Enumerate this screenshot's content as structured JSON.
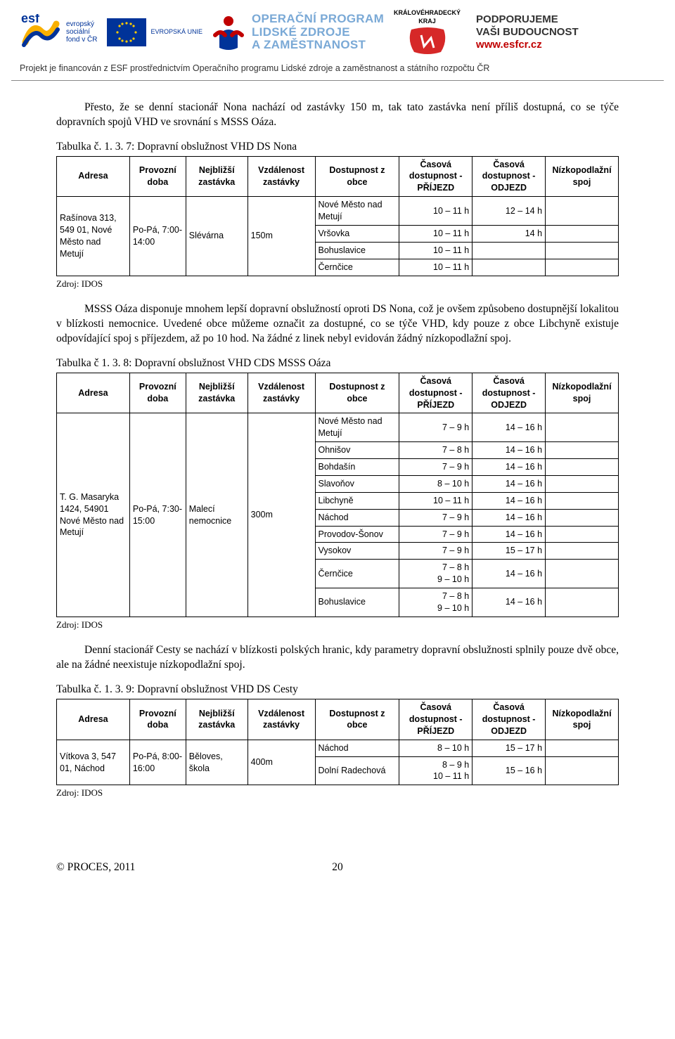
{
  "header": {
    "esf_lines": [
      "evropský",
      "sociální",
      "fond v ČR"
    ],
    "eu_label": "EVROPSKÁ UNIE",
    "op_line1": "OPERAČNÍ PROGRAM",
    "op_line2": "LIDSKÉ ZDROJE",
    "op_line3": "A ZAMĚSTNANOST",
    "kraj_line1": "KRÁLOVÉHRADECKÝ",
    "kraj_line2": "KRAJ",
    "support_line1": "PODPORUJEME",
    "support_line2": "VAŠI BUDOUCNOST",
    "support_url": "www.esfcr.cz",
    "funding_line": "Projekt je financován z ESF prostřednictvím Operačního programu Lidské zdroje a zaměstnanost a státního rozpočtu ČR"
  },
  "para1": "Přesto, že se denní stacionář Nona nachází od zastávky 150 m, tak tato zastávka není příliš dostupná, co se týče dopravních spojů VHD ve srovnání s MSSS Oáza.",
  "caption1": "Tabulka č. 1. 3. 7: Dopravní obslužnost VHD DS Nona",
  "columns": [
    "Adresa",
    "Provozní doba",
    "Nejbližší zastávka",
    "Vzdálenost zastávky",
    "Dostupnost z obce",
    "Časová dostupnost - PŘÍJEZD",
    "Časová dostupnost - ODJEZD",
    "Nízkopodlažní spoj"
  ],
  "t1": {
    "adresa": "Rašínova 313, 549 01, Nové Město nad Metují",
    "doba": "Po-Pá, 7:00-14:00",
    "zastavka": "Slévárna",
    "vzdalenost": "150m",
    "rows": [
      {
        "obec": "Nové Město nad Metují",
        "prijezd": "10 – 11 h",
        "odjezd": "12 – 14 h",
        "spoj": ""
      },
      {
        "obec": "Vršovka",
        "prijezd": "10 – 11 h",
        "odjezd": "14 h",
        "spoj": ""
      },
      {
        "obec": "Bohuslavice",
        "prijezd": "10 – 11 h",
        "odjezd": "",
        "spoj": ""
      },
      {
        "obec": "Černčice",
        "prijezd": "10 – 11 h",
        "odjezd": "",
        "spoj": ""
      }
    ]
  },
  "source": "Zdroj: IDOS",
  "para2": "MSSS Oáza disponuje mnohem lepší dopravní obslužností oproti DS Nona, což je ovšem způsobeno dostupnější lokalitou v blízkosti nemocnice. Uvedené obce můžeme označit za dostupné, co se týče VHD, kdy pouze z obce Libchyně existuje odpovídající spoj s příjezdem, až po 10 hod. Na žádné z linek nebyl evidován žádný nízkopodlažní spoj.",
  "caption2": "Tabulka č 1. 3. 8: Dopravní obslužnost VHD CDS MSSS Oáza",
  "t2": {
    "adresa": "T. G. Masaryka 1424, 54901 Nové Město nad Metují",
    "doba": "Po-Pá, 7:30-15:00",
    "zastavka": "Malecí nemocnice",
    "vzdalenost": "300m",
    "rows": [
      {
        "obec": "Nové Město nad Metují",
        "prijezd": "7 – 9 h",
        "odjezd": "14 – 16 h",
        "spoj": ""
      },
      {
        "obec": "Ohnišov",
        "prijezd": "7 – 8 h",
        "odjezd": "14 – 16 h",
        "spoj": ""
      },
      {
        "obec": "Bohdašín",
        "prijezd": "7 – 9 h",
        "odjezd": "14 – 16 h",
        "spoj": ""
      },
      {
        "obec": "Slavoňov",
        "prijezd": "8 – 10 h",
        "odjezd": "14 – 16 h",
        "spoj": ""
      },
      {
        "obec": "Libchyně",
        "prijezd": "10 – 11 h",
        "odjezd": "14 – 16 h",
        "spoj": ""
      },
      {
        "obec": "Náchod",
        "prijezd": "7 – 9 h",
        "odjezd": "14 – 16 h",
        "spoj": ""
      },
      {
        "obec": "Provodov-Šonov",
        "prijezd": "7 – 9 h",
        "odjezd": "14 – 16 h",
        "spoj": ""
      },
      {
        "obec": "Vysokov",
        "prijezd": "7 – 9 h",
        "odjezd": "15 – 17 h",
        "spoj": ""
      },
      {
        "obec": "Černčice",
        "prijezd": "7 – 8 h\n9 – 10 h",
        "odjezd": "14 – 16 h",
        "spoj": ""
      },
      {
        "obec": "Bohuslavice",
        "prijezd": "7 – 8 h\n9 – 10 h",
        "odjezd": "14 – 16 h",
        "spoj": ""
      }
    ]
  },
  "para3": "Denní stacionář Cesty se nachází v blízkosti polských hranic, kdy parametry dopravní obslužnosti splnily pouze dvě obce, ale na žádné neexistuje nízkopodlažní spoj.",
  "caption3": "Tabulka č. 1. 3. 9: Dopravní obslužnost VHD DS Cesty",
  "t3": {
    "adresa": "Vítkova 3, 547 01, Náchod",
    "doba": "Po-Pá, 8:00-16:00",
    "zastavka": "Běloves, škola",
    "vzdalenost": "400m",
    "rows": [
      {
        "obec": "Náchod",
        "prijezd": "8 – 10 h",
        "odjezd": "15 – 17 h",
        "spoj": ""
      },
      {
        "obec": "Dolní Radechová",
        "prijezd": "8 – 9 h\n10 – 11 h",
        "odjezd": "15 – 16 h",
        "spoj": ""
      }
    ]
  },
  "footer": {
    "copyright": "© PROCES, 2011",
    "page": "20"
  },
  "colors": {
    "op_blue": "#7aa9d6",
    "eu_blue": "#003399",
    "eu_yellow": "#ffcc00",
    "red": "#c00000",
    "kraj_red": "#d62828",
    "border": "#000000"
  },
  "col_widths_pct": [
    13,
    10,
    11,
    12,
    15,
    13,
    13,
    13
  ]
}
